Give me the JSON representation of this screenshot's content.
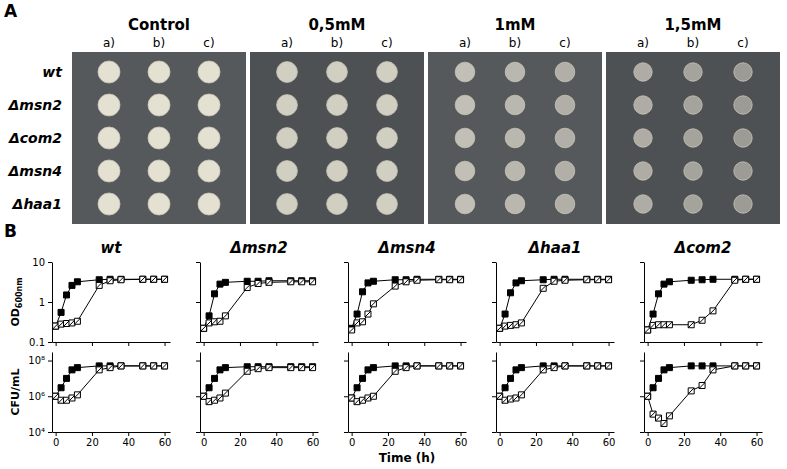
{
  "panel_a": {
    "label": "A",
    "conditions": [
      {
        "name": "Control",
        "replicates": [
          "a)",
          "b)",
          "c)"
        ]
      },
      {
        "name": "0,5mM",
        "replicates": [
          "a)",
          "b)",
          "c)"
        ]
      },
      {
        "name": "1mM",
        "replicates": [
          "a)",
          "b)",
          "c)"
        ]
      },
      {
        "name": "1,5mM",
        "replicates": [
          "a)",
          "b)",
          "c)"
        ]
      }
    ],
    "strains": [
      "wt",
      "Δmsn2",
      "Δcom2",
      "Δmsn4",
      "Δhaa1"
    ]
  },
  "panel_b": {
    "label": "B"
  },
  "chart_data": [
    {
      "type": "line",
      "title": "wt",
      "y_label": "OD600nm",
      "log": "y",
      "tick_labels": "y",
      "x": [
        0,
        3,
        6,
        9,
        12,
        24,
        30,
        36,
        48,
        54,
        60
      ],
      "xlim": [
        -2,
        63
      ],
      "xticks": [
        0,
        20,
        40,
        60
      ],
      "ylim": [
        0.1,
        10
      ],
      "yticks": [
        0.1,
        1,
        10
      ],
      "series": [
        {
          "color": "#000000",
          "marker": "square",
          "values": [
            0.25,
            0.55,
            1.5,
            2.6,
            3.2,
            3.6,
            3.7,
            3.7,
            3.7,
            3.7,
            3.7
          ]
        },
        {
          "color": "#000000",
          "marker": "open-square",
          "values": [
            0.25,
            0.28,
            0.29,
            0.3,
            0.33,
            2.6,
            3.4,
            3.6,
            3.7,
            3.7,
            3.7
          ]
        }
      ]
    },
    {
      "type": "line",
      "title": "Δmsn2",
      "log": "y",
      "tick_labels": false,
      "x": [
        0,
        3,
        6,
        9,
        12,
        24,
        30,
        36,
        48,
        54,
        60
      ],
      "xlim": [
        -2,
        63
      ],
      "xticks": [
        0,
        20,
        40,
        60
      ],
      "ylim": [
        0.1,
        10
      ],
      "yticks": [
        0.1,
        1,
        10
      ],
      "series": [
        {
          "color": "#000000",
          "marker": "square",
          "values": [
            0.22,
            0.45,
            1.6,
            2.8,
            3.1,
            3.3,
            3.3,
            3.4,
            3.4,
            3.4,
            3.4
          ]
        },
        {
          "color": "#000000",
          "marker": "open-square",
          "values": [
            0.22,
            0.3,
            0.32,
            0.33,
            0.45,
            2.3,
            2.9,
            3.1,
            3.2,
            3.2,
            3.2
          ]
        }
      ]
    },
    {
      "type": "line",
      "title": "Δmsn4",
      "log": "y",
      "tick_labels": false,
      "x": [
        0,
        3,
        6,
        9,
        12,
        24,
        30,
        36,
        48,
        54,
        60
      ],
      "xlim": [
        -2,
        63
      ],
      "xticks": [
        0,
        20,
        40,
        60
      ],
      "ylim": [
        0.1,
        10
      ],
      "yticks": [
        0.1,
        1,
        10
      ],
      "series": [
        {
          "color": "#000000",
          "marker": "square",
          "values": [
            0.22,
            0.5,
            1.8,
            3.0,
            3.3,
            3.6,
            3.6,
            3.7,
            3.7,
            3.7,
            3.7
          ]
        },
        {
          "color": "#000000",
          "marker": "open-square",
          "values": [
            0.2,
            0.3,
            0.32,
            0.5,
            0.9,
            2.5,
            3.2,
            3.5,
            3.6,
            3.6,
            3.6
          ]
        }
      ]
    },
    {
      "type": "line",
      "title": "Δhaa1",
      "log": "y",
      "tick_labels": false,
      "x": [
        0,
        3,
        6,
        9,
        12,
        24,
        30,
        36,
        48,
        54,
        60
      ],
      "xlim": [
        -2,
        63
      ],
      "xticks": [
        0,
        20,
        40,
        60
      ],
      "ylim": [
        0.1,
        10
      ],
      "yticks": [
        0.1,
        1,
        10
      ],
      "series": [
        {
          "color": "#000000",
          "marker": "square",
          "values": [
            0.22,
            0.5,
            1.7,
            3.0,
            3.4,
            3.6,
            3.7,
            3.7,
            3.7,
            3.7,
            3.7
          ]
        },
        {
          "color": "#000000",
          "marker": "open-square",
          "values": [
            0.22,
            0.25,
            0.26,
            0.27,
            0.3,
            2.2,
            3.3,
            3.5,
            3.6,
            3.6,
            3.6
          ]
        }
      ]
    },
    {
      "type": "line",
      "title": "Δcom2",
      "log": "y",
      "tick_labels": false,
      "x": [
        0,
        3,
        6,
        9,
        12,
        24,
        30,
        36,
        48,
        54,
        60
      ],
      "xlim": [
        -2,
        63
      ],
      "xticks": [
        0,
        20,
        40,
        60
      ],
      "ylim": [
        0.1,
        10
      ],
      "yticks": [
        0.1,
        1,
        10
      ],
      "series": [
        {
          "color": "#000000",
          "marker": "square",
          "values": [
            0.2,
            0.5,
            1.6,
            2.8,
            3.2,
            3.5,
            3.6,
            3.7,
            3.7,
            3.7,
            3.7
          ]
        },
        {
          "color": "#000000",
          "marker": "open-square",
          "values": [
            0.2,
            0.26,
            0.27,
            0.27,
            0.27,
            0.27,
            0.35,
            0.6,
            3.5,
            3.7,
            3.7
          ]
        }
      ]
    },
    {
      "type": "line",
      "y_label": "CFU/mL",
      "log": "y",
      "x": [
        0,
        3,
        6,
        9,
        12,
        24,
        30,
        36,
        48,
        54,
        60
      ],
      "xlim": [
        -2,
        63
      ],
      "xticks": [
        0,
        20,
        40,
        60
      ],
      "ylim": [
        10000.0,
        300000000.0
      ],
      "yticks": [
        {
          "value": 10000.0,
          "label": "10⁴"
        },
        {
          "value": 1000000.0,
          "label": "10⁶"
        },
        {
          "value": 100000000.0,
          "label": "10⁸"
        }
      ],
      "series": [
        {
          "color": "#000000",
          "marker": "square",
          "values": [
            1000000.0,
            3000000.0,
            10000000.0,
            30000000.0,
            40000000.0,
            50000000.0,
            50000000.0,
            50000000.0,
            50000000.0,
            50000000.0,
            50000000.0
          ]
        },
        {
          "color": "#000000",
          "marker": "open-square",
          "values": [
            1000000.0,
            600000.0,
            600000.0,
            800000.0,
            1200000.0,
            30000000.0,
            40000000.0,
            50000000.0,
            50000000.0,
            50000000.0,
            50000000.0
          ]
        }
      ]
    },
    {
      "type": "line",
      "log": "y",
      "tick_labels": "x",
      "x": [
        0,
        3,
        6,
        9,
        12,
        24,
        30,
        36,
        48,
        54,
        60
      ],
      "xlim": [
        -2,
        63
      ],
      "xticks": [
        0,
        20,
        40,
        60
      ],
      "ylim": [
        10000.0,
        300000000.0
      ],
      "yticks": [
        {
          "value": 10000.0,
          "label": "10⁴"
        },
        {
          "value": 1000000.0,
          "label": "10⁶"
        },
        {
          "value": 100000000.0,
          "label": "10⁸"
        }
      ],
      "series": [
        {
          "color": "#000000",
          "marker": "square",
          "values": [
            1000000.0,
            3000000.0,
            10000000.0,
            30000000.0,
            40000000.0,
            45000000.0,
            45000000.0,
            45000000.0,
            45000000.0,
            45000000.0,
            45000000.0
          ]
        },
        {
          "color": "#000000",
          "marker": "open-square",
          "values": [
            1000000.0,
            500000.0,
            600000.0,
            800000.0,
            1500000.0,
            25000000.0,
            35000000.0,
            40000000.0,
            40000000.0,
            40000000.0,
            40000000.0
          ]
        }
      ]
    },
    {
      "type": "line",
      "x_label": "Time (h)",
      "log": "y",
      "tick_labels": "x",
      "x": [
        0,
        3,
        6,
        9,
        12,
        24,
        30,
        36,
        48,
        54,
        60
      ],
      "xlim": [
        -2,
        63
      ],
      "xticks": [
        0,
        20,
        40,
        60
      ],
      "ylim": [
        10000.0,
        300000000.0
      ],
      "yticks": [
        {
          "value": 10000.0,
          "label": "10⁴"
        },
        {
          "value": 1000000.0,
          "label": "10⁶"
        },
        {
          "value": 100000000.0,
          "label": "10⁸"
        }
      ],
      "series": [
        {
          "color": "#000000",
          "marker": "square",
          "values": [
            800000.0,
            3000000.0,
            10000000.0,
            30000000.0,
            40000000.0,
            50000000.0,
            50000000.0,
            50000000.0,
            50000000.0,
            50000000.0,
            50000000.0
          ]
        },
        {
          "color": "#000000",
          "marker": "open-square",
          "values": [
            800000.0,
            500000.0,
            600000.0,
            800000.0,
            1000000.0,
            25000000.0,
            40000000.0,
            50000000.0,
            50000000.0,
            50000000.0,
            50000000.0
          ]
        }
      ]
    },
    {
      "type": "line",
      "log": "y",
      "tick_labels": "x",
      "x": [
        0,
        3,
        6,
        9,
        12,
        24,
        30,
        36,
        48,
        54,
        60
      ],
      "xlim": [
        -2,
        63
      ],
      "xticks": [
        0,
        20,
        40,
        60
      ],
      "ylim": [
        10000.0,
        300000000.0
      ],
      "yticks": [
        {
          "value": 10000.0,
          "label": "10⁴"
        },
        {
          "value": 1000000.0,
          "label": "10⁶"
        },
        {
          "value": 100000000.0,
          "label": "10⁸"
        }
      ],
      "series": [
        {
          "color": "#000000",
          "marker": "square",
          "values": [
            1000000.0,
            3000000.0,
            10000000.0,
            30000000.0,
            40000000.0,
            50000000.0,
            50000000.0,
            50000000.0,
            50000000.0,
            50000000.0,
            50000000.0
          ]
        },
        {
          "color": "#000000",
          "marker": "open-square",
          "values": [
            1000000.0,
            600000.0,
            700000.0,
            800000.0,
            1200000.0,
            30000000.0,
            40000000.0,
            50000000.0,
            50000000.0,
            50000000.0,
            50000000.0
          ]
        }
      ]
    },
    {
      "type": "line",
      "log": "y",
      "tick_labels": "x",
      "x": [
        0,
        3,
        6,
        9,
        12,
        24,
        30,
        36,
        48,
        54,
        60
      ],
      "xlim": [
        -2,
        63
      ],
      "xticks": [
        0,
        20,
        40,
        60
      ],
      "ylim": [
        10000.0,
        300000000.0
      ],
      "yticks": [
        {
          "value": 10000.0,
          "label": "10⁴"
        },
        {
          "value": 1000000.0,
          "label": "10⁶"
        },
        {
          "value": 100000000.0,
          "label": "10⁸"
        }
      ],
      "series": [
        {
          "color": "#000000",
          "marker": "square",
          "values": [
            1000000.0,
            3000000.0,
            10000000.0,
            30000000.0,
            40000000.0,
            50000000.0,
            50000000.0,
            50000000.0,
            50000000.0,
            50000000.0,
            50000000.0
          ]
        },
        {
          "color": "#000000",
          "marker": "open-square",
          "values": [
            1000000.0,
            100000.0,
            60000.0,
            30000.0,
            80000.0,
            2000000.0,
            4000000.0,
            30000000.0,
            50000000.0,
            50000000.0,
            50000000.0
          ]
        }
      ]
    }
  ]
}
